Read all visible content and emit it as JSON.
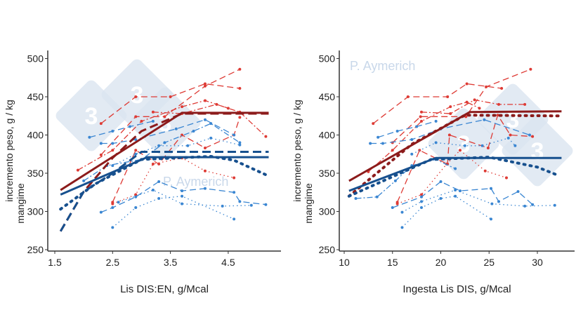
{
  "watermark": {
    "author": "P. Aymerich",
    "logo_text": "3"
  },
  "colors": {
    "study_red": "#de3b35",
    "fit_red": "#8c1b1b",
    "study_blue": "#3a86d2",
    "fit_blue": "#17508e"
  },
  "chart_data": [
    {
      "type": "line",
      "xlabel": "Lis DIS:EN, g/Mcal",
      "ylabel": "incremento peso, g / kg",
      "ylabel2": "mangime",
      "xlim": [
        1.4,
        5.3
      ],
      "ylim": [
        245,
        515
      ],
      "xticks": [
        "1.5",
        "2.5",
        "3.5",
        "4.5"
      ],
      "yticks": [
        "250",
        "300",
        "350",
        "400",
        "450",
        "500"
      ],
      "grid": false,
      "series": [
        {
          "group": "red",
          "style": "solid",
          "fit": true,
          "points": [
            [
              1.6,
              328
            ],
            [
              3.7,
              429
            ],
            [
              5.2,
              429
            ]
          ]
        },
        {
          "group": "red",
          "style": "dashed",
          "fit": true,
          "points": [
            [
              1.6,
              274
            ],
            [
              2.0,
              326
            ],
            [
              2.5,
              370
            ],
            [
              3.0,
              405
            ],
            [
              3.7,
              428
            ],
            [
              5.2,
              428
            ]
          ]
        },
        {
          "group": "blue",
          "style": "solid",
          "fit": true,
          "points": [
            [
              1.6,
              322
            ],
            [
              3.1,
              371
            ],
            [
              5.2,
              371
            ]
          ]
        },
        {
          "group": "blue",
          "style": "dashed",
          "fit": true,
          "points": [
            [
              1.6,
              274
            ],
            [
              2.0,
              326
            ],
            [
              2.5,
              350
            ],
            [
              3.0,
              378
            ],
            [
              5.2,
              378
            ]
          ]
        },
        {
          "group": "blue",
          "style": "dotted",
          "fit": true,
          "points": [
            [
              1.6,
              303
            ],
            [
              2.2,
              336
            ],
            [
              3.0,
              368
            ],
            [
              4.2,
              372
            ],
            [
              4.6,
              367
            ],
            [
              5.15,
              348
            ]
          ]
        },
        {
          "group": "red",
          "style": "dashed",
          "points": [
            [
              2.3,
              415
            ],
            [
              2.9,
              450
            ],
            [
              3.5,
              450
            ],
            [
              4.1,
              467
            ],
            [
              4.7,
              461
            ]
          ]
        },
        {
          "group": "red",
          "style": "dashed",
          "points": [
            [
              2.3,
              374
            ],
            [
              2.9,
              424
            ],
            [
              3.4,
              424
            ],
            [
              4.1,
              464
            ],
            [
              4.7,
              486
            ]
          ]
        },
        {
          "group": "red",
          "style": "dashdot",
          "points": [
            [
              1.9,
              354
            ],
            [
              2.5,
              380
            ],
            [
              3.0,
              418
            ],
            [
              3.7,
              437
            ],
            [
              4.1,
              445
            ],
            [
              4.5,
              435
            ]
          ]
        },
        {
          "group": "red",
          "style": "dashed",
          "points": [
            [
              2.5,
              312
            ],
            [
              2.9,
              380
            ],
            [
              3.3,
              362
            ],
            [
              3.7,
              400
            ],
            [
              4.1,
              383
            ],
            [
              4.6,
              400
            ],
            [
              4.7,
              423
            ]
          ]
        },
        {
          "group": "red",
          "style": "dotted",
          "points": [
            [
              2.5,
              310
            ],
            [
              2.9,
              322
            ],
            [
              3.2,
              362
            ],
            [
              3.7,
              370
            ],
            [
              4.1,
              353
            ],
            [
              4.6,
              344
            ]
          ]
        },
        {
          "group": "red",
          "style": "dashdot",
          "points": [
            [
              3.2,
              430
            ],
            [
              3.7,
              428
            ],
            [
              4.3,
              440
            ],
            [
              4.7,
              430
            ],
            [
              5.15,
              398
            ]
          ]
        },
        {
          "group": "blue",
          "style": "dashed",
          "points": [
            [
              2.1,
              397
            ],
            [
              2.5,
              405
            ],
            [
              2.8,
              411
            ],
            [
              3.2,
              418
            ]
          ]
        },
        {
          "group": "blue",
          "style": "dashed",
          "points": [
            [
              2.3,
              389
            ],
            [
              2.5,
              389
            ],
            [
              2.9,
              394
            ],
            [
              3.6,
              408
            ],
            [
              4.1,
              420
            ],
            [
              4.6,
              400
            ]
          ]
        },
        {
          "group": "blue",
          "style": "dashed",
          "points": [
            [
              2.3,
              299
            ],
            [
              2.5,
              305
            ],
            [
              2.9,
              319
            ],
            [
              3.3,
              339
            ],
            [
              3.7,
              327
            ],
            [
              4.1,
              330
            ],
            [
              4.6,
              325
            ],
            [
              4.7,
              313
            ],
            [
              5.15,
              309
            ]
          ]
        },
        {
          "group": "blue",
          "style": "dotted",
          "points": [
            [
              2.5,
              279
            ],
            [
              2.9,
              305
            ],
            [
              3.3,
              317
            ],
            [
              3.7,
              320
            ],
            [
              4.6,
              290
            ]
          ]
        },
        {
          "group": "blue",
          "style": "dotted",
          "points": [
            [
              2.6,
              312
            ],
            [
              3.2,
              328
            ],
            [
              3.7,
              310
            ],
            [
              4.4,
              307
            ],
            [
              4.9,
              308
            ]
          ]
        },
        {
          "group": "blue",
          "style": "dotted",
          "points": [
            [
              2.5,
              360
            ],
            [
              2.9,
              375
            ],
            [
              3.3,
              386
            ],
            [
              3.8,
              386
            ],
            [
              4.2,
              396
            ],
            [
              4.7,
              387
            ]
          ]
        },
        {
          "group": "blue",
          "style": "dashdot",
          "points": [
            [
              2.0,
              340
            ],
            [
              2.4,
              360
            ],
            [
              3.0,
              368
            ],
            [
              3.4,
              390
            ],
            [
              3.9,
              405
            ],
            [
              4.2,
              415
            ],
            [
              4.7,
              390
            ]
          ]
        }
      ]
    },
    {
      "type": "line",
      "xlabel": "Ingesta Lis DIS, g/Mcal",
      "ylabel": "incremento peso, g / kg",
      "ylabel2": "mangime",
      "xlim": [
        9.5,
        33
      ],
      "ylim": [
        245,
        515
      ],
      "xticks": [
        "10",
        "15",
        "20",
        "25",
        "30"
      ],
      "yticks": [
        "250",
        "300",
        "350",
        "400",
        "450",
        "500"
      ],
      "grid": false,
      "series": [
        {
          "group": "red",
          "style": "solid",
          "fit": true,
          "points": [
            [
              10.5,
              340
            ],
            [
              23,
              430
            ],
            [
              32.5,
              431
            ]
          ]
        },
        {
          "group": "red",
          "style": "dotted",
          "fit": true,
          "points": [
            [
              10.5,
              320
            ],
            [
              17,
              388
            ],
            [
              22.5,
              426
            ],
            [
              32.5,
              425
            ]
          ]
        },
        {
          "group": "blue",
          "style": "solid",
          "fit": true,
          "points": [
            [
              10.5,
              327
            ],
            [
              19.5,
              370
            ],
            [
              32.5,
              370
            ]
          ]
        },
        {
          "group": "blue",
          "style": "dotted",
          "fit": true,
          "points": [
            [
              10.5,
              320
            ],
            [
              19,
              368
            ],
            [
              25,
              371
            ],
            [
              30,
              358
            ],
            [
              32,
              348
            ]
          ]
        },
        {
          "group": "red",
          "style": "dashed",
          "points": [
            [
              13,
              415
            ],
            [
              16.6,
              450
            ],
            [
              20.7,
              450
            ],
            [
              22.7,
              467
            ],
            [
              26.3,
              461
            ]
          ]
        },
        {
          "group": "red",
          "style": "dashed",
          "points": [
            [
              15,
              390
            ],
            [
              17.9,
              424
            ],
            [
              22.6,
              424
            ],
            [
              24.7,
              463
            ],
            [
              29.3,
              486
            ]
          ]
        },
        {
          "group": "red",
          "style": "dashdot",
          "points": [
            [
              12.5,
              352
            ],
            [
              15,
              380
            ],
            [
              18,
              418
            ],
            [
              21,
              437
            ],
            [
              22.7,
              443
            ],
            [
              24,
              435
            ]
          ]
        },
        {
          "group": "red",
          "style": "dashed",
          "points": [
            [
              15.5,
              312
            ],
            [
              17.8,
              380
            ],
            [
              20.7,
              362
            ],
            [
              20.9,
              400
            ],
            [
              24.9,
              383
            ],
            [
              25.9,
              426
            ],
            [
              27.2,
              400
            ],
            [
              29.5,
              398
            ]
          ]
        },
        {
          "group": "red",
          "style": "dotted",
          "points": [
            [
              15.5,
              310
            ],
            [
              18,
              322
            ],
            [
              20.6,
              362
            ],
            [
              22,
              380
            ],
            [
              24.6,
              353
            ],
            [
              26.8,
              344
            ]
          ]
        },
        {
          "group": "red",
          "style": "dashdot",
          "points": [
            [
              18,
              430
            ],
            [
              21,
              428
            ],
            [
              23.5,
              446
            ],
            [
              26,
              440
            ],
            [
              28.7,
              440
            ]
          ]
        },
        {
          "group": "blue",
          "style": "dashed",
          "points": [
            [
              13.5,
              397
            ],
            [
              15.5,
              405
            ],
            [
              17.5,
              411
            ],
            [
              19.5,
              418
            ]
          ]
        },
        {
          "group": "blue",
          "style": "dashed",
          "points": [
            [
              12.7,
              389
            ],
            [
              14,
              389
            ],
            [
              17,
              394
            ],
            [
              20,
              408
            ],
            [
              24.5,
              420
            ],
            [
              29.2,
              400
            ]
          ]
        },
        {
          "group": "blue",
          "style": "dashed",
          "points": [
            [
              15,
              305
            ],
            [
              18,
              319
            ],
            [
              20,
              339
            ],
            [
              22,
              327
            ],
            [
              25.2,
              330
            ],
            [
              26,
              313
            ],
            [
              28,
              326
            ],
            [
              29.5,
              309
            ]
          ]
        },
        {
          "group": "blue",
          "style": "dotted",
          "points": [
            [
              16,
              279
            ],
            [
              18,
              305
            ],
            [
              20,
              317
            ],
            [
              21.5,
              320
            ],
            [
              25.2,
              290
            ]
          ]
        },
        {
          "group": "blue",
          "style": "dotted",
          "points": [
            [
              16,
              299
            ],
            [
              18,
              313
            ],
            [
              21.5,
              328
            ],
            [
              25.3,
              310
            ],
            [
              28.7,
              307
            ],
            [
              31.8,
              308
            ]
          ]
        },
        {
          "group": "blue",
          "style": "dotted",
          "points": [
            [
              17,
              375
            ],
            [
              19.5,
              390
            ],
            [
              22.5,
              386
            ],
            [
              24.3,
              386
            ],
            [
              27,
              396
            ],
            [
              27.7,
              386
            ]
          ]
        },
        {
          "group": "blue",
          "style": "dashdot",
          "points": [
            [
              11.2,
              317
            ],
            [
              13.4,
              319
            ],
            [
              15.3,
              340
            ],
            [
              17,
              360
            ],
            [
              19.5,
              368
            ],
            [
              21.5,
              356
            ]
          ]
        }
      ]
    }
  ]
}
